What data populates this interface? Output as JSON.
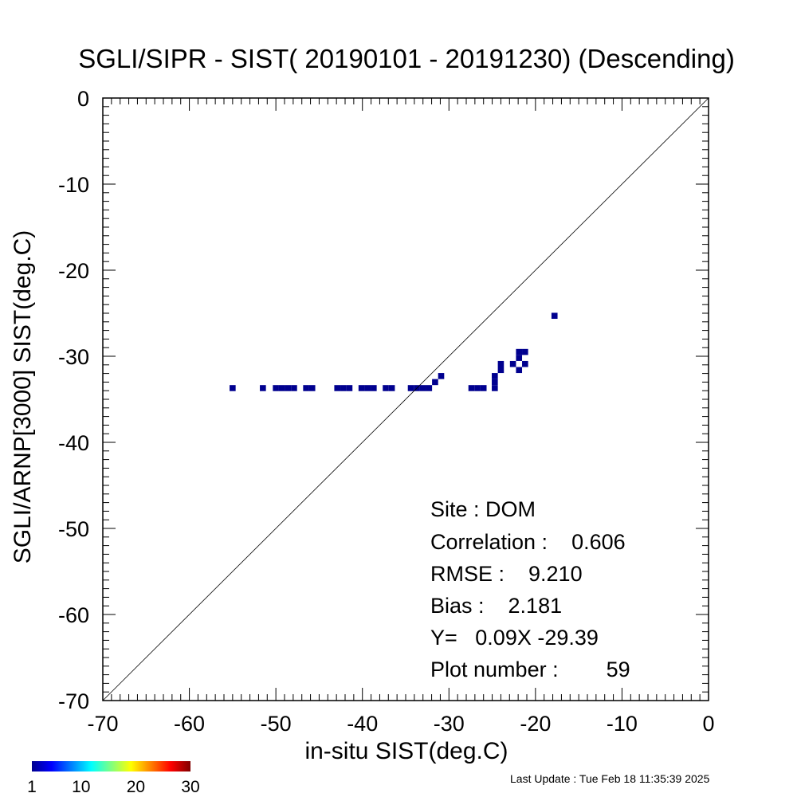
{
  "chart_data": {
    "type": "heatmap",
    "title": "SGLI/SIPR - SIST( 20190101 - 20191230) (Descending)",
    "xlabel": "in-situ SIST(deg.C)",
    "ylabel": "SGLI/ARNP[3000]    SIST(deg.C)",
    "xlim": [
      -70,
      0
    ],
    "ylim": [
      -70,
      0
    ],
    "x_ticks": [
      "-70",
      "-60",
      "-50",
      "-40",
      "-30",
      "-20",
      "-10",
      "0"
    ],
    "y_ticks": [
      "0",
      "-10",
      "-20",
      "-30",
      "-40",
      "-50",
      "-60",
      "-70"
    ],
    "reference_line": "1:1 diagonal",
    "cell_color": "#00008f",
    "points": [
      {
        "x": -55.0,
        "y": -33.7
      },
      {
        "x": -51.5,
        "y": -33.7
      },
      {
        "x": -50.0,
        "y": -33.7
      },
      {
        "x": -49.3,
        "y": -33.7
      },
      {
        "x": -48.6,
        "y": -33.7
      },
      {
        "x": -47.9,
        "y": -33.7
      },
      {
        "x": -46.5,
        "y": -33.7
      },
      {
        "x": -45.8,
        "y": -33.7
      },
      {
        "x": -42.9,
        "y": -33.7
      },
      {
        "x": -42.2,
        "y": -33.7
      },
      {
        "x": -41.5,
        "y": -33.7
      },
      {
        "x": -40.1,
        "y": -33.7
      },
      {
        "x": -39.4,
        "y": -33.7
      },
      {
        "x": -38.7,
        "y": -33.7
      },
      {
        "x": -37.3,
        "y": -33.7
      },
      {
        "x": -36.6,
        "y": -33.7
      },
      {
        "x": -34.4,
        "y": -33.7
      },
      {
        "x": -33.7,
        "y": -33.7
      },
      {
        "x": -33.0,
        "y": -33.7
      },
      {
        "x": -32.3,
        "y": -33.7
      },
      {
        "x": -31.6,
        "y": -33.0
      },
      {
        "x": -30.9,
        "y": -32.3
      },
      {
        "x": -27.4,
        "y": -33.7
      },
      {
        "x": -26.7,
        "y": -33.7
      },
      {
        "x": -26.0,
        "y": -33.7
      },
      {
        "x": -24.7,
        "y": -33.7
      },
      {
        "x": -24.7,
        "y": -33.0
      },
      {
        "x": -24.7,
        "y": -32.3
      },
      {
        "x": -24.0,
        "y": -31.6
      },
      {
        "x": -24.0,
        "y": -30.9
      },
      {
        "x": -22.6,
        "y": -30.9
      },
      {
        "x": -21.9,
        "y": -31.6
      },
      {
        "x": -21.9,
        "y": -30.2
      },
      {
        "x": -21.9,
        "y": -29.5
      },
      {
        "x": -21.2,
        "y": -29.5
      },
      {
        "x": -21.2,
        "y": -30.9
      },
      {
        "x": -17.8,
        "y": -25.3
      }
    ]
  },
  "stats": {
    "site": "Site : DOM",
    "correlation": "Correlation :    0.606",
    "rmse": "RMSE :    9.210",
    "bias": "Bias :    2.181",
    "regression": "Y=   0.09X -29.39",
    "plot_number": "Plot number :        59"
  },
  "colorbar": {
    "labels": [
      "1",
      "10",
      "20",
      "30"
    ],
    "colors": [
      "#00008f",
      "#0000ff",
      "#0080ff",
      "#00ffff",
      "#80ff80",
      "#ffff00",
      "#ff8000",
      "#ff0000",
      "#800000"
    ]
  },
  "footer": {
    "last_update": "Last Update : Tue Feb 18 11:35:39 2025"
  }
}
